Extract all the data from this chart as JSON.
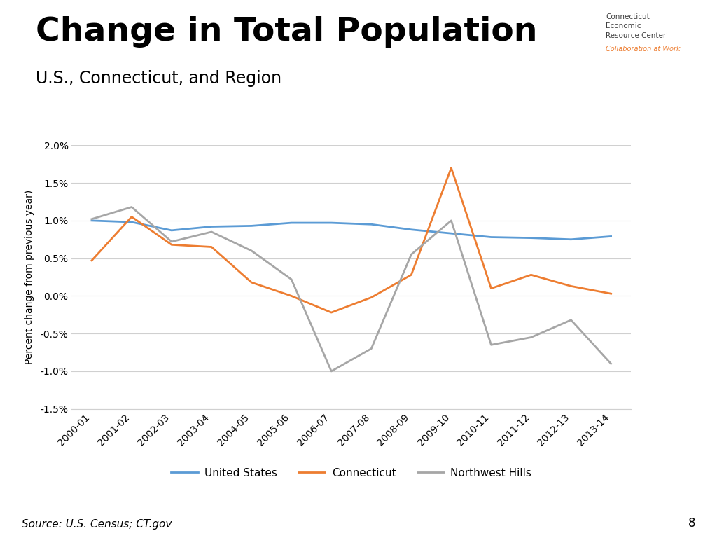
{
  "title": "Change in Total Population",
  "subtitle": "U.S., Connecticut, and Region",
  "ylabel": "Percent change from previous year)",
  "source": "Source: U.S. Census; CT.gov",
  "page_number": "8",
  "categories": [
    "2000-01",
    "2001-02",
    "2002-03",
    "2003-04",
    "2004-05",
    "2005-06",
    "2006-07",
    "2007-08",
    "2008-09",
    "2009-10",
    "2010-11",
    "2011-12",
    "2012-13",
    "2013-14"
  ],
  "us": [
    1.0,
    0.98,
    0.87,
    0.92,
    0.93,
    0.97,
    0.97,
    0.95,
    0.88,
    0.83,
    0.78,
    0.77,
    0.75,
    0.79
  ],
  "connecticut": [
    0.47,
    1.05,
    0.68,
    0.65,
    0.18,
    0.0,
    -0.22,
    -0.02,
    0.28,
    1.7,
    0.1,
    0.28,
    0.13,
    0.03
  ],
  "northwest_hills": [
    1.02,
    1.18,
    0.72,
    0.85,
    0.6,
    0.22,
    -1.0,
    -0.7,
    0.55,
    1.0,
    -0.65,
    -0.55,
    -0.32,
    -0.9
  ],
  "us_color": "#5b9bd5",
  "connecticut_color": "#ed7d31",
  "northwest_hills_color": "#a6a6a6",
  "ylim": [
    -1.5,
    2.0
  ],
  "yticks": [
    -1.5,
    -1.0,
    -0.5,
    0.0,
    0.5,
    1.0,
    1.5,
    2.0
  ],
  "background_color": "#ffffff",
  "grid_color": "#d0d0d0",
  "title_fontsize": 34,
  "subtitle_fontsize": 17,
  "axis_label_fontsize": 10,
  "tick_fontsize": 10,
  "legend_fontsize": 11
}
